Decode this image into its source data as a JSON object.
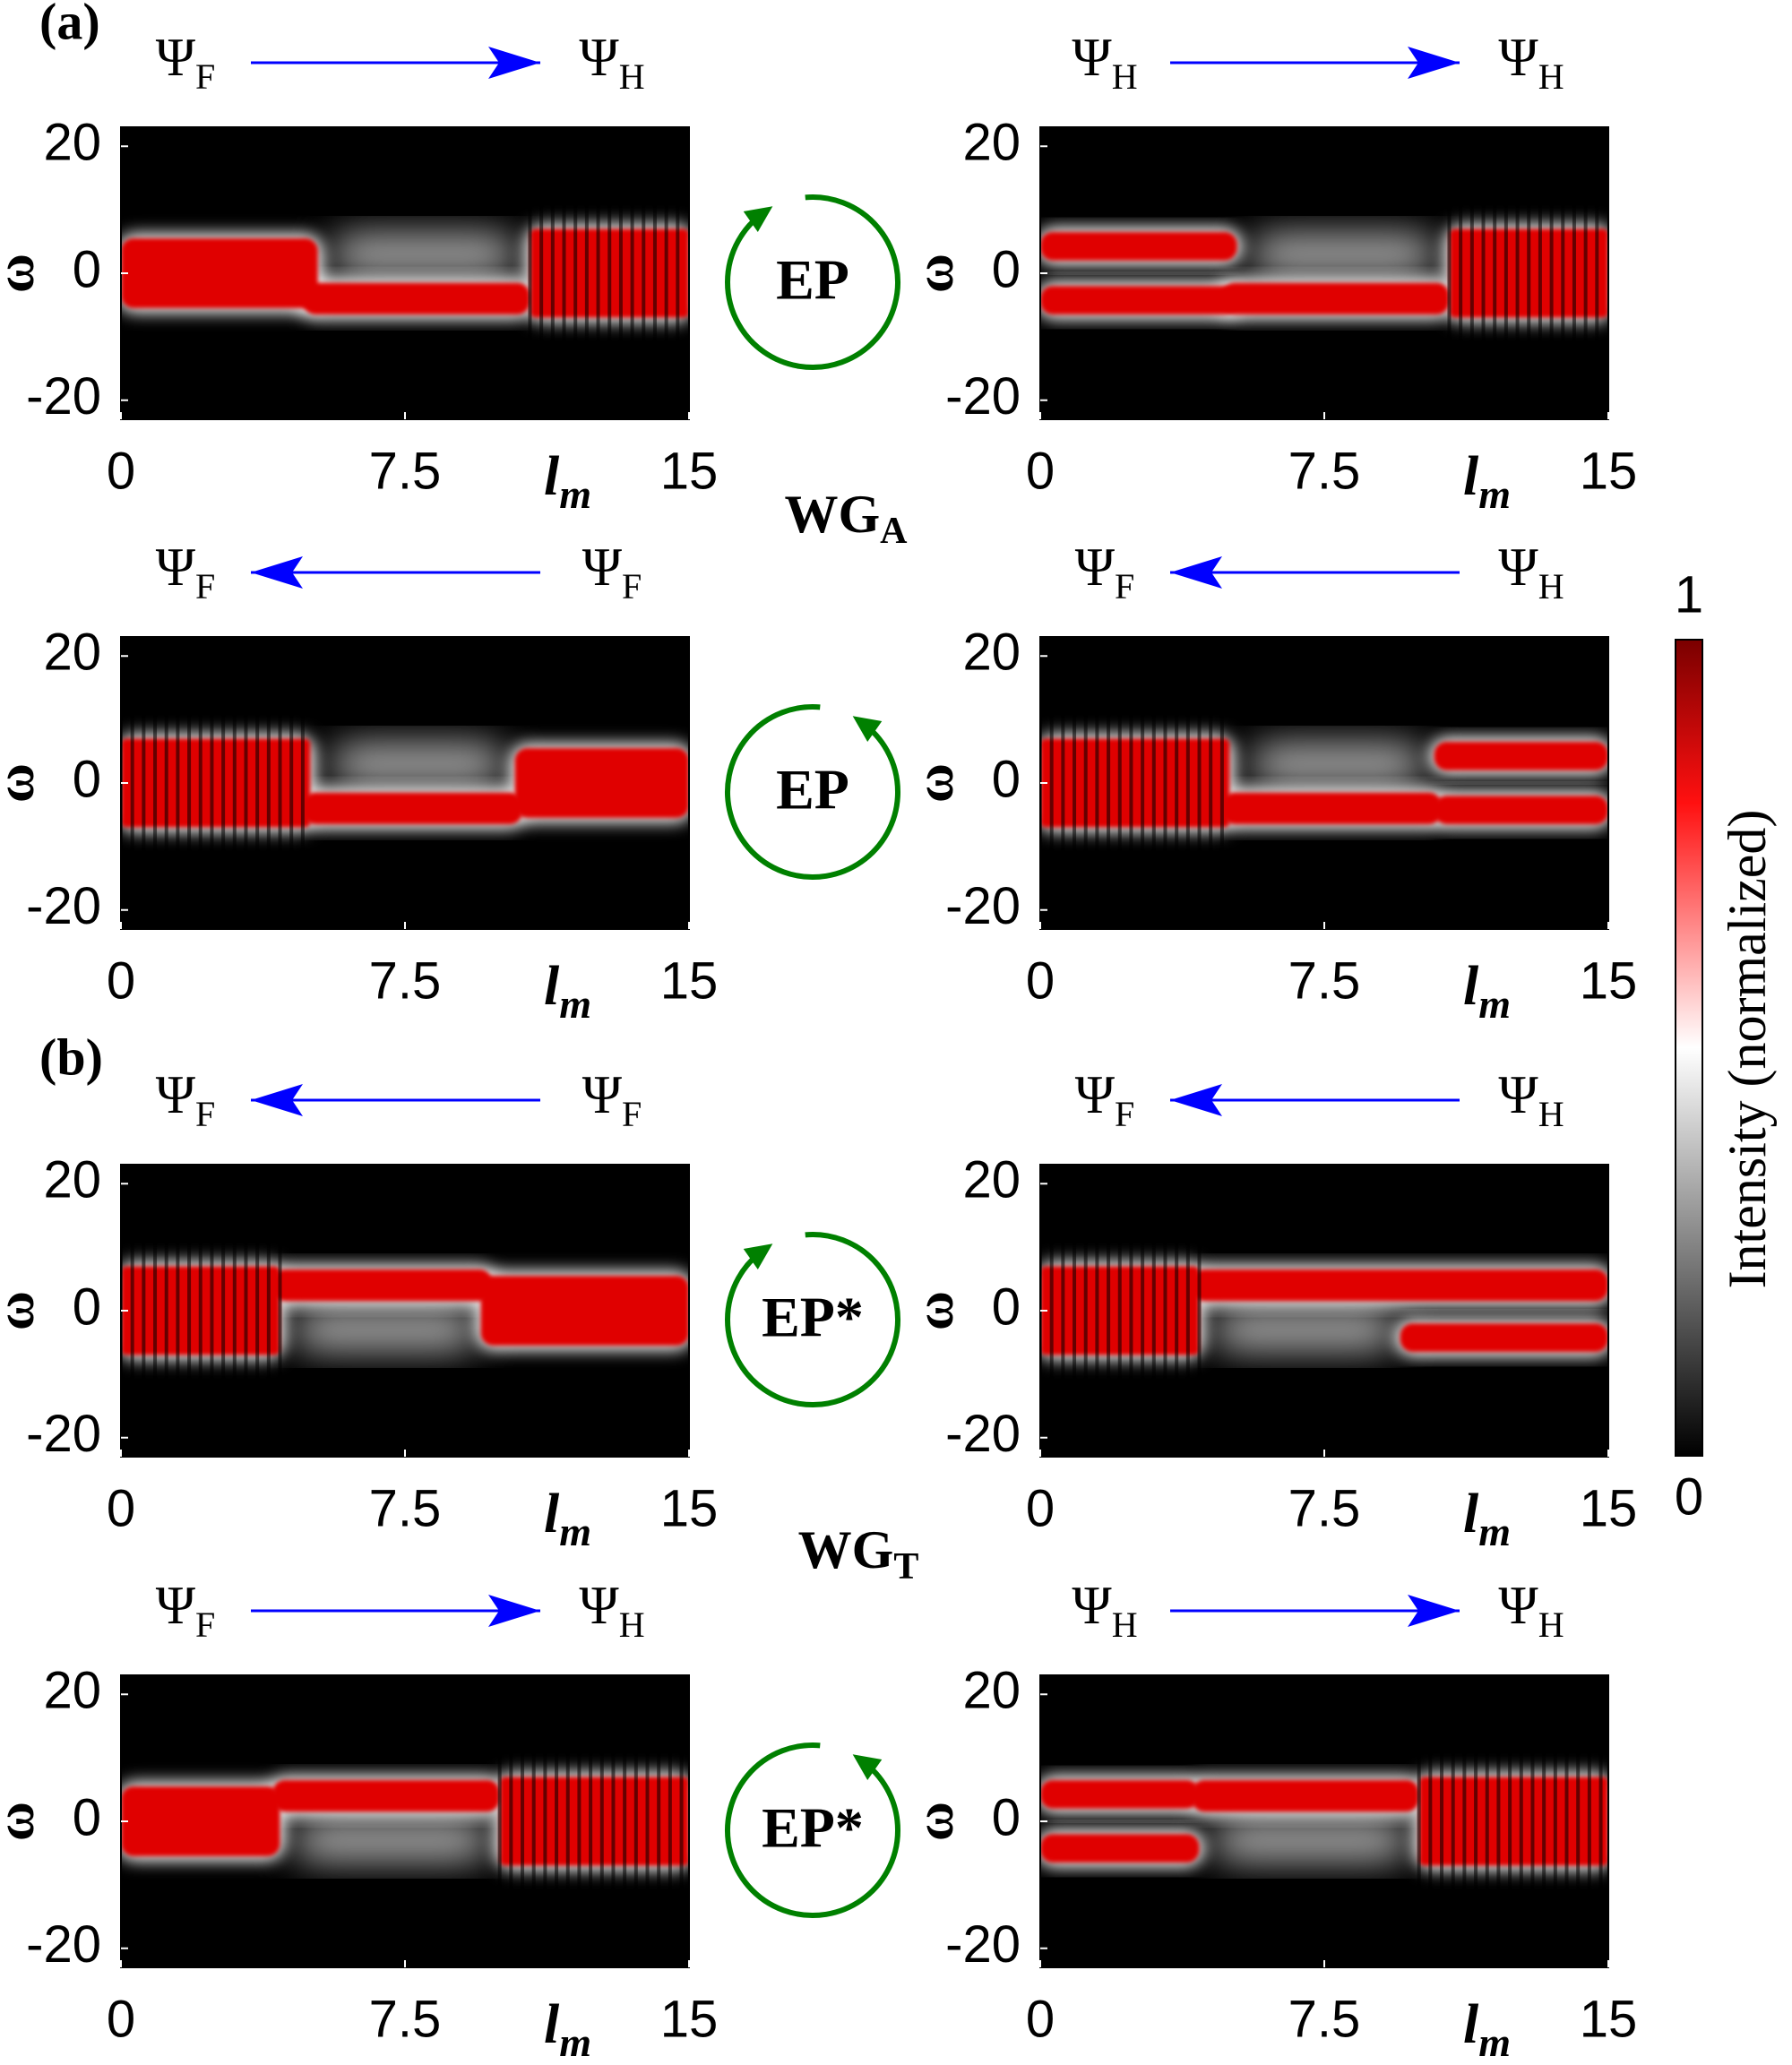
{
  "labels": {
    "part_a": "(a)",
    "part_b": "(b)",
    "wg_a": {
      "base": "WG",
      "sub": "A"
    },
    "wg_t": {
      "base": "WG",
      "sub": "T"
    }
  },
  "chart_data": [
    {
      "type": "heatmap",
      "left_state": {
        "base": "Ψ",
        "sub": "F"
      },
      "right_state": {
        "base": "Ψ",
        "sub": "H"
      },
      "arrow": "right",
      "arrow_color": "#0000ff",
      "xlabel": {
        "base": "l",
        "sub": "m"
      },
      "ylabel": "ω",
      "xlim": [
        0,
        15
      ],
      "ylim": [
        -23,
        23
      ],
      "xticks": [
        0,
        7.5,
        15
      ],
      "yticks": [
        20,
        0,
        -20
      ]
    },
    {
      "type": "heatmap",
      "left_state": {
        "base": "Ψ",
        "sub": "H"
      },
      "right_state": {
        "base": "Ψ",
        "sub": "H"
      },
      "arrow": "right",
      "arrow_color": "#0000ff",
      "xlabel": {
        "base": "l",
        "sub": "m"
      },
      "ylabel": "ω",
      "xlim": [
        0,
        15
      ],
      "ylim": [
        -23,
        23
      ],
      "xticks": [
        0,
        7.5,
        15
      ],
      "yticks": [
        20,
        0,
        -20
      ]
    },
    {
      "type": "heatmap",
      "left_state": {
        "base": "Ψ",
        "sub": "F"
      },
      "right_state": {
        "base": "Ψ",
        "sub": "F"
      },
      "arrow": "left",
      "arrow_color": "#0000ff",
      "xlabel": {
        "base": "l",
        "sub": "m"
      },
      "ylabel": "ω",
      "xlim": [
        0,
        15
      ],
      "ylim": [
        -23,
        23
      ],
      "xticks": [
        0,
        7.5,
        15
      ],
      "yticks": [
        20,
        0,
        -20
      ]
    },
    {
      "type": "heatmap",
      "left_state": {
        "base": "Ψ",
        "sub": "F"
      },
      "right_state": {
        "base": "Ψ",
        "sub": "H"
      },
      "arrow": "left",
      "arrow_color": "#0000ff",
      "xlabel": {
        "base": "l",
        "sub": "m"
      },
      "ylabel": "ω",
      "xlim": [
        0,
        15
      ],
      "ylim": [
        -23,
        23
      ],
      "xticks": [
        0,
        7.5,
        15
      ],
      "yticks": [
        20,
        0,
        -20
      ]
    },
    {
      "type": "heatmap",
      "left_state": {
        "base": "Ψ",
        "sub": "F"
      },
      "right_state": {
        "base": "Ψ",
        "sub": "F"
      },
      "arrow": "left",
      "arrow_color": "#0000ff",
      "xlabel": {
        "base": "l",
        "sub": "m"
      },
      "ylabel": "ω",
      "xlim": [
        0,
        15
      ],
      "ylim": [
        -23,
        23
      ],
      "xticks": [
        0,
        7.5,
        15
      ],
      "yticks": [
        20,
        0,
        -20
      ]
    },
    {
      "type": "heatmap",
      "left_state": {
        "base": "Ψ",
        "sub": "F"
      },
      "right_state": {
        "base": "Ψ",
        "sub": "H"
      },
      "arrow": "left",
      "arrow_color": "#0000ff",
      "xlabel": {
        "base": "l",
        "sub": "m"
      },
      "ylabel": "ω",
      "xlim": [
        0,
        15
      ],
      "ylim": [
        -23,
        23
      ],
      "xticks": [
        0,
        7.5,
        15
      ],
      "yticks": [
        20,
        0,
        -20
      ]
    },
    {
      "type": "heatmap",
      "left_state": {
        "base": "Ψ",
        "sub": "F"
      },
      "right_state": {
        "base": "Ψ",
        "sub": "H"
      },
      "arrow": "right",
      "arrow_color": "#0000ff",
      "xlabel": {
        "base": "l",
        "sub": "m"
      },
      "ylabel": "ω",
      "xlim": [
        0,
        15
      ],
      "ylim": [
        -23,
        23
      ],
      "xticks": [
        0,
        7.5,
        15
      ],
      "yticks": [
        20,
        0,
        -20
      ]
    },
    {
      "type": "heatmap",
      "left_state": {
        "base": "Ψ",
        "sub": "H"
      },
      "right_state": {
        "base": "Ψ",
        "sub": "H"
      },
      "arrow": "right",
      "arrow_color": "#0000ff",
      "xlabel": {
        "base": "l",
        "sub": "m"
      },
      "ylabel": "ω",
      "xlim": [
        0,
        15
      ],
      "ylim": [
        -23,
        23
      ],
      "xticks": [
        0,
        7.5,
        15
      ],
      "yticks": [
        20,
        0,
        -20
      ]
    }
  ],
  "ep_markers": [
    {
      "label": "EP",
      "direction": "clockwise",
      "color": "#008000"
    },
    {
      "label": "EP",
      "direction": "counterclockwise",
      "color": "#008000"
    },
    {
      "label": "EP*",
      "direction": "clockwise",
      "color": "#008000"
    },
    {
      "label": "EP*",
      "direction": "counterclockwise",
      "color": "#008000"
    }
  ],
  "colorbar": {
    "label": "Intensity (normalized)",
    "zlim": [
      0,
      1
    ],
    "zticks": [
      1,
      0
    ]
  }
}
